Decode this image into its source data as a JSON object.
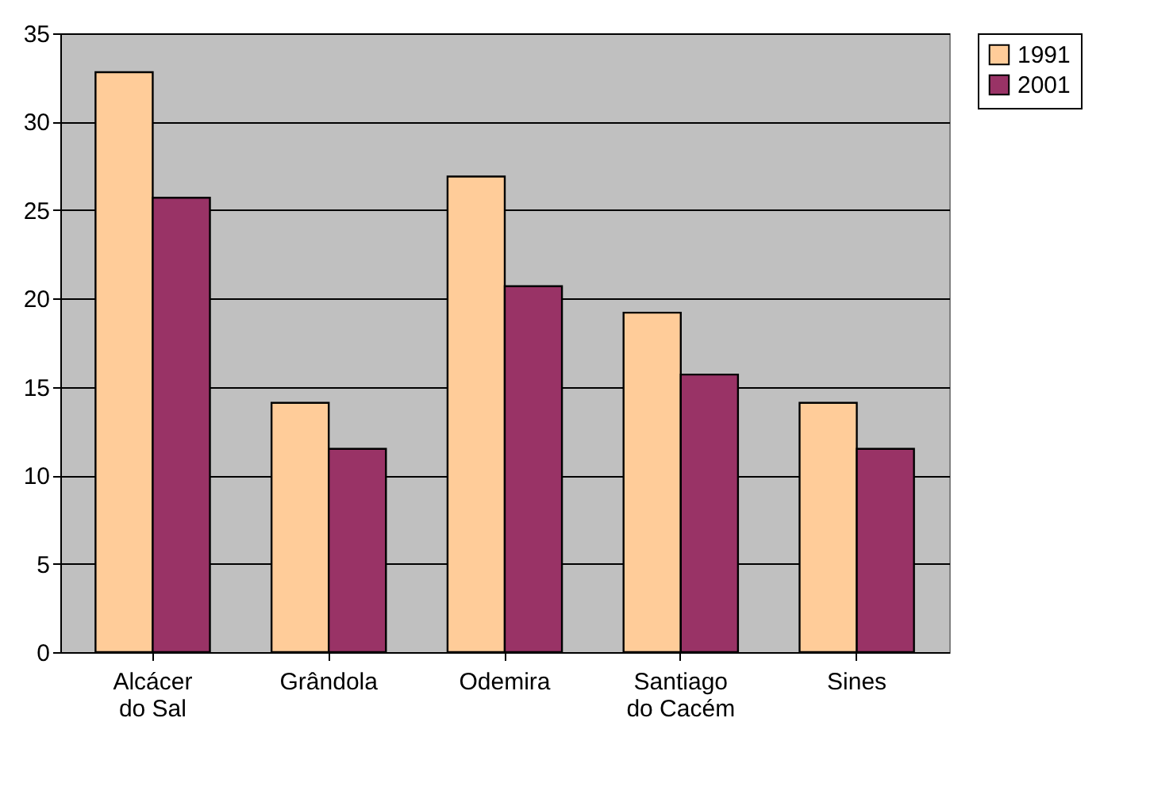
{
  "chart_data": {
    "type": "bar",
    "categories": [
      "Alcácer do Sal",
      "Grândola",
      "Odemira",
      "Santiago do Cacém",
      "Sines"
    ],
    "series": [
      {
        "name": "1991",
        "color": "#ffcc99",
        "values": [
          32.8,
          14.1,
          26.9,
          19.2,
          14.1
        ]
      },
      {
        "name": "2001",
        "color": "#993366",
        "values": [
          25.7,
          11.5,
          20.7,
          15.7,
          11.5
        ]
      }
    ],
    "ylim": [
      0,
      35
    ],
    "yticks": [
      0,
      5,
      10,
      15,
      20,
      25,
      30,
      35
    ],
    "grid": "y",
    "legend": "right"
  }
}
